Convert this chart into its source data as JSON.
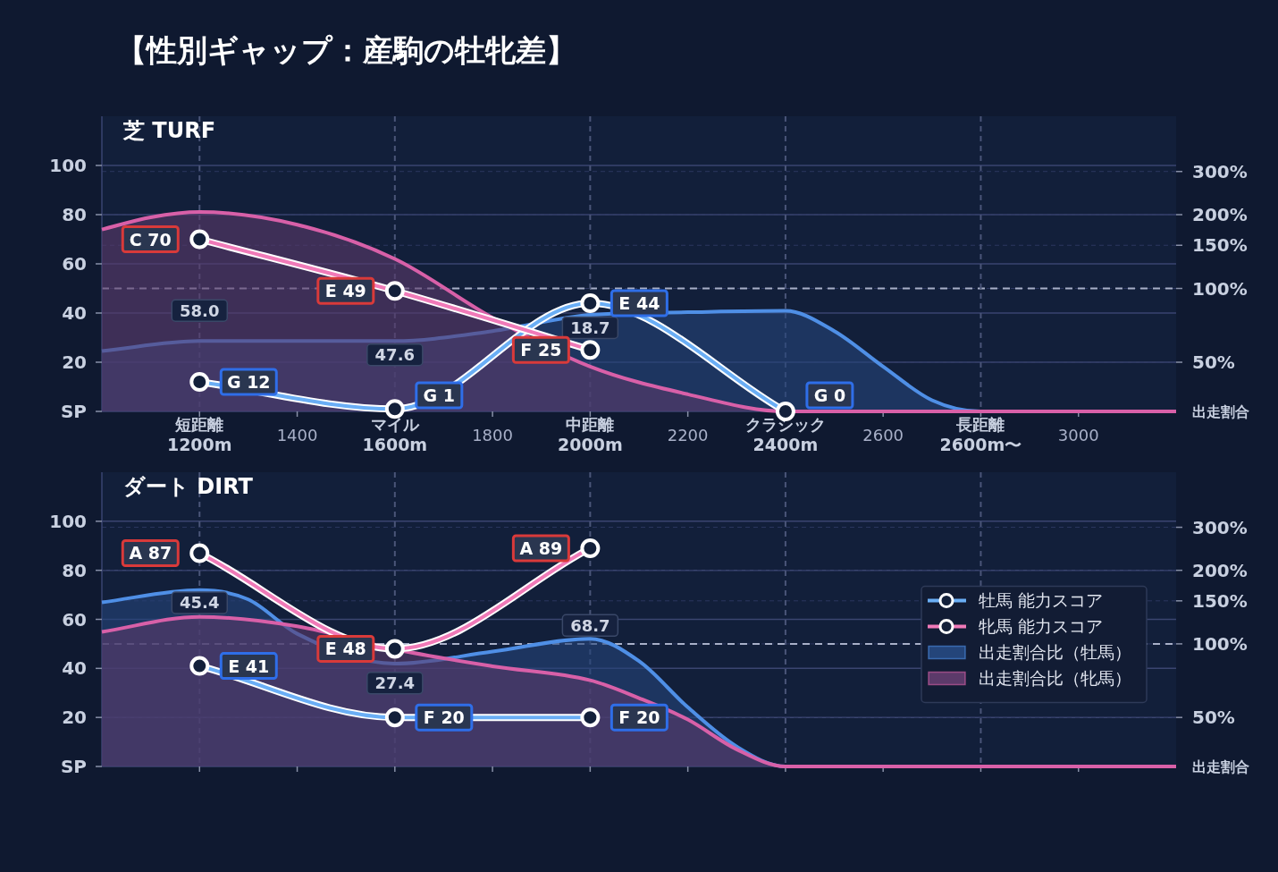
{
  "chart_data": [
    {
      "type": "line",
      "title": "【性別ギャップ：産駒の牡牝差】",
      "subtitle": "芝 TURF",
      "xlim": [
        1000,
        3200
      ],
      "xticks": [
        {
          "value": 1200,
          "label": "短距離 1200m"
        },
        1400,
        {
          "value": 1600,
          "label": "マイル 1600m"
        },
        1800,
        {
          "value": 2000,
          "label": "中距離 2000m"
        },
        2200,
        {
          "value": 2400,
          "label": "クラシック 2400m"
        },
        2600,
        {
          "value": 2800,
          "label": "長距離 2600m〜"
        },
        3000
      ],
      "ylim": [
        0,
        120
      ],
      "yticks": [
        {
          "value": 0,
          "label": "SP"
        },
        20,
        40,
        60,
        80,
        100
      ],
      "y2label": "出走割合",
      "log": "y2",
      "y2lim": [
        31.5,
        504
      ],
      "y2ticks": [
        {
          "value": 50,
          "label": "50%"
        },
        {
          "value": 100,
          "label": "100%"
        },
        {
          "value": 150,
          "label": "150%"
        },
        {
          "value": 200,
          "label": "200%"
        },
        {
          "value": 300,
          "label": "300%"
        }
      ],
      "grid": "y",
      "ref_lines": [
        {
          "axis": "y2",
          "value": 100,
          "label": null
        },
        {
          "axis": "x",
          "value": 1200,
          "label": null
        },
        {
          "axis": "x",
          "value": 1600,
          "label": null
        },
        {
          "axis": "x",
          "value": 2000,
          "label": null
        },
        {
          "axis": "x",
          "value": 2400,
          "label": null
        },
        {
          "axis": "x",
          "value": 2800,
          "label": null
        }
      ],
      "annotations": [
        {
          "text": "58.0",
          "x": 1200,
          "y": 41
        },
        {
          "text": "47.6",
          "x": 1600,
          "y": 23
        },
        {
          "text": "18.7",
          "x": 2000,
          "y": 34
        }
      ],
      "series": [
        {
          "type": "area",
          "axis": "y2",
          "color": "#4f8fe6",
          "x": [
            1000,
            1200,
            1600,
            1800,
            2000,
            2200,
            2400,
            2500,
            2600,
            2700,
            2800,
            3200
          ],
          "values": [
            55.5,
            61,
            61,
            67,
            78,
            80,
            81,
            67,
            48,
            35,
            31.5,
            31.5
          ]
        },
        {
          "type": "area",
          "axis": "y2",
          "color": "#d860a8",
          "x": [
            1000,
            1100,
            1200,
            1400,
            1600,
            1800,
            2000,
            2200,
            2400,
            3200
          ],
          "values": [
            174,
            195,
            205,
            182,
            132,
            76,
            48,
            37,
            31.5,
            31.5
          ]
        },
        {
          "marker": "circle",
          "color": "#6aaef5",
          "x": [
            1200,
            1600,
            2000,
            2400
          ],
          "values": [
            12,
            1,
            44,
            0
          ],
          "value_labels": [
            "G 12",
            "G 1",
            "E 44",
            "G 0"
          ]
        },
        {
          "marker": "circle",
          "color": "#f07ab8",
          "x": [
            1200,
            1600,
            2000
          ],
          "values": [
            70,
            49,
            25
          ],
          "value_labels": [
            "C 70",
            "E 49",
            "F 25"
          ]
        }
      ]
    },
    {
      "type": "line",
      "subtitle": "ダート DIRT",
      "xlim": [
        1000,
        3200
      ],
      "xticks": [
        1200,
        1400,
        1600,
        1800,
        2000,
        2200,
        2400,
        2600,
        2800,
        3000
      ],
      "tick_labels": "y",
      "ylim": [
        0,
        120
      ],
      "yticks": [
        {
          "value": 0,
          "label": "SP"
        },
        20,
        40,
        60,
        80,
        100
      ],
      "y2label": "出走割合",
      "log": "y2",
      "y2lim": [
        31.5,
        504
      ],
      "y2ticks": [
        {
          "value": 50,
          "label": "50%"
        },
        {
          "value": 100,
          "label": "100%"
        },
        {
          "value": 150,
          "label": "150%"
        },
        {
          "value": 200,
          "label": "200%"
        },
        {
          "value": 300,
          "label": "300%"
        }
      ],
      "grid": "y",
      "legend": "right",
      "ref_lines": [
        {
          "axis": "y2",
          "value": 100,
          "label": null
        },
        {
          "axis": "x",
          "value": 1200,
          "label": null
        },
        {
          "axis": "x",
          "value": 1600,
          "label": null
        },
        {
          "axis": "x",
          "value": 2000,
          "label": null
        },
        {
          "axis": "x",
          "value": 2400,
          "label": null
        },
        {
          "axis": "x",
          "value": 2800,
          "label": null
        }
      ],
      "annotations": [
        {
          "text": "45.4",
          "x": 1200,
          "y": 66.75
        },
        {
          "text": "27.4",
          "x": 1600,
          "y": 34
        },
        {
          "text": "68.7",
          "x": 2000,
          "y": 57.5
        }
      ],
      "series": [
        {
          "type": "area",
          "axis": "y2",
          "name": "出走割合比（牡馬）",
          "color": "#4f8fe6",
          "x": [
            1000,
            1200,
            1300,
            1400,
            1600,
            1800,
            2000,
            2100,
            2200,
            2300,
            2400,
            3200
          ],
          "values": [
            148,
            166,
            152,
            110,
            83,
            93,
            105,
            85,
            55,
            38,
            31.5,
            31.5
          ]
        },
        {
          "type": "area",
          "axis": "y2",
          "name": "出走割合比（牝馬）",
          "color": "#d860a8",
          "x": [
            1000,
            1200,
            1400,
            1600,
            1800,
            2000,
            2100,
            2200,
            2300,
            2400,
            3200
          ],
          "values": [
            112,
            129,
            118,
            95,
            81,
            71,
            60,
            49,
            37,
            31.5,
            31.5
          ]
        },
        {
          "marker": "circle",
          "name": "牡馬 能力スコア",
          "color": "#6aaef5",
          "x": [
            1200,
            1600,
            2000
          ],
          "values": [
            41,
            20,
            20
          ],
          "value_labels": [
            "E 41",
            "F 20",
            "F 20"
          ]
        },
        {
          "marker": "circle",
          "name": "牝馬 能力スコア",
          "color": "#f07ab8",
          "x": [
            1200,
            1600,
            2000
          ],
          "values": [
            87,
            48,
            89
          ],
          "value_labels": [
            "A 87",
            "E 48",
            "A 89"
          ]
        }
      ]
    }
  ]
}
